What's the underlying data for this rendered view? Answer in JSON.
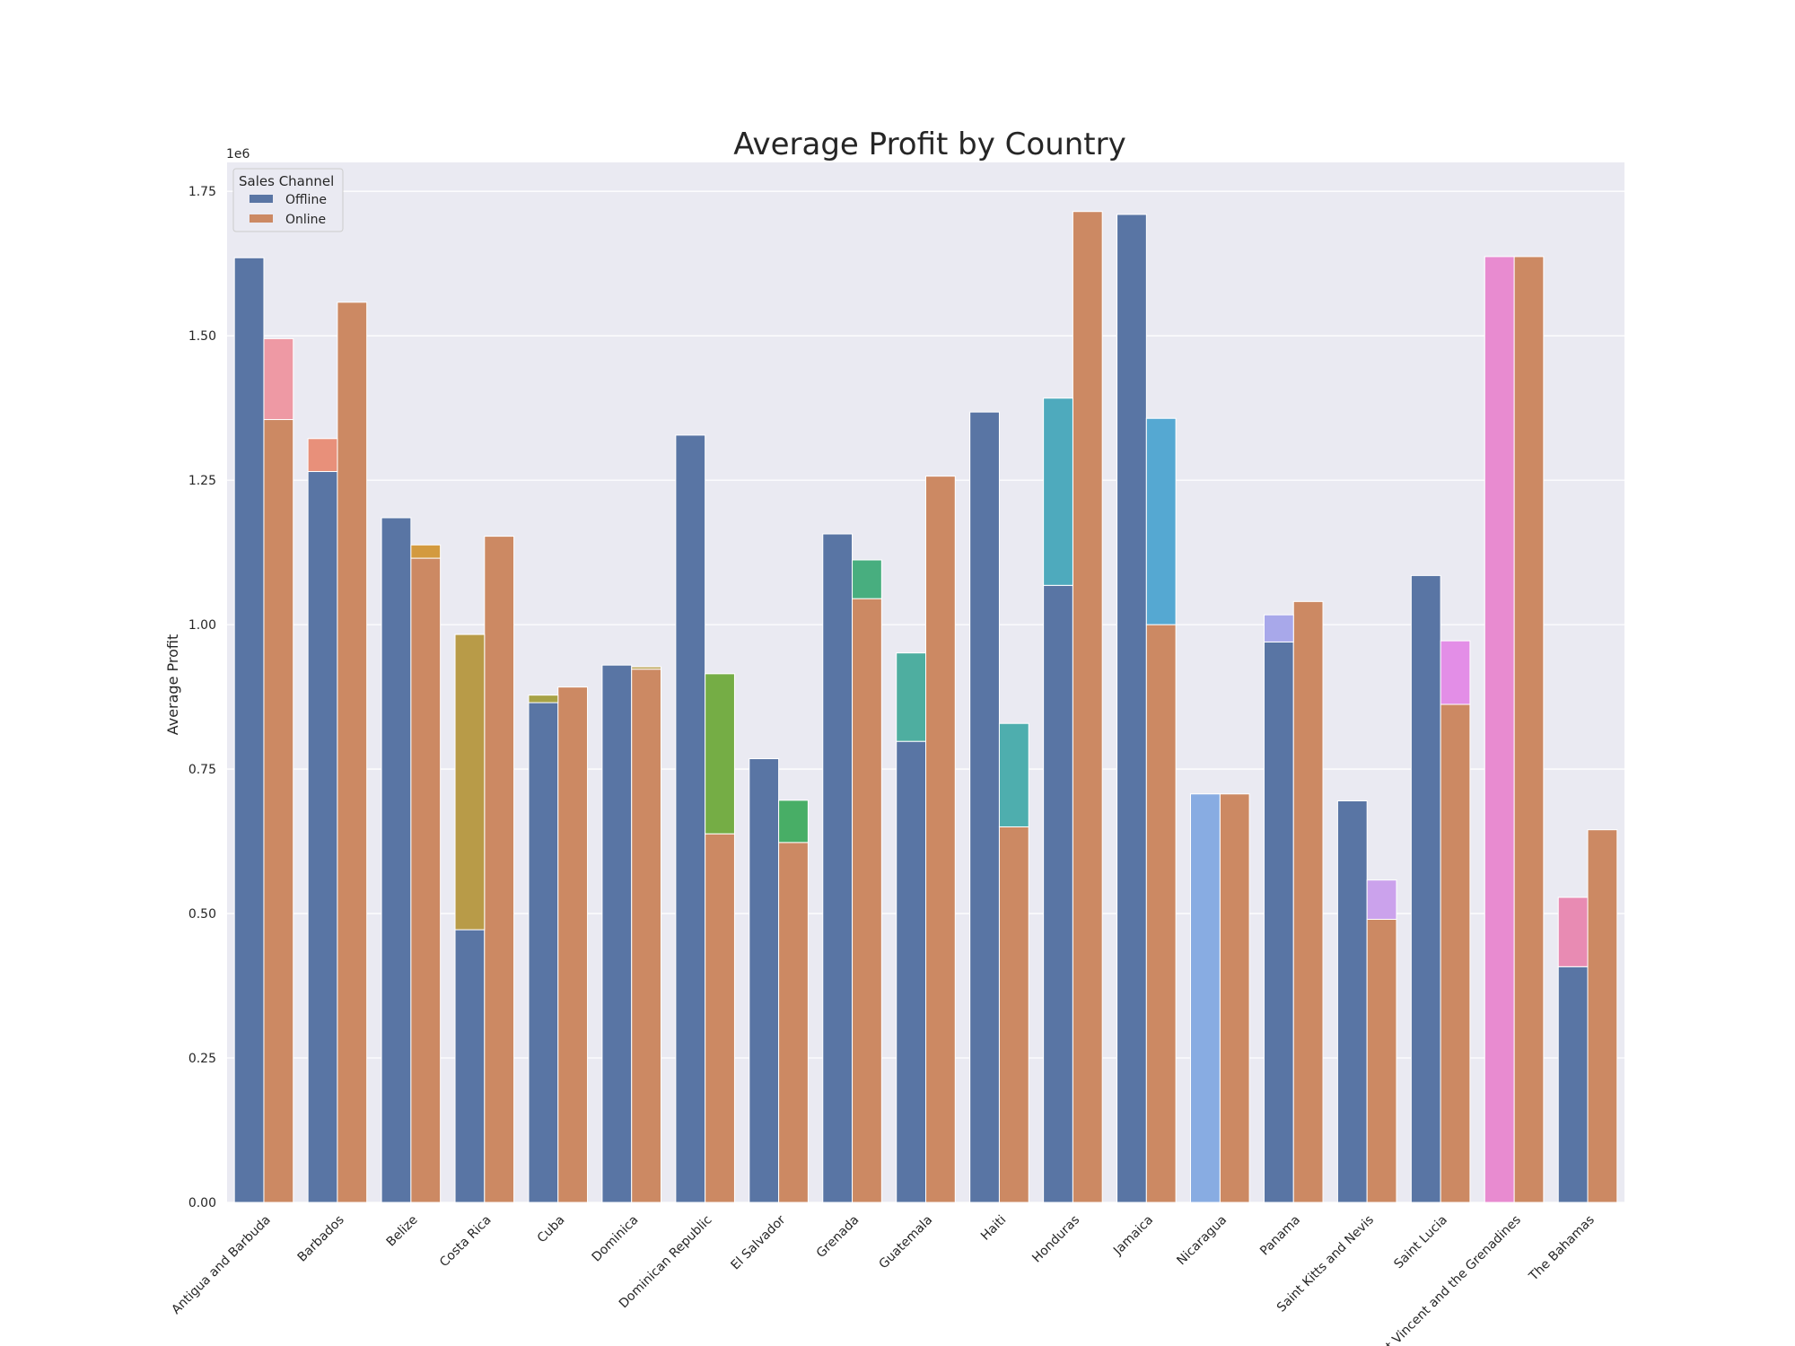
{
  "chart_data": {
    "type": "bar",
    "title": "Average Profit by Country",
    "xlabel": "",
    "ylabel": "Average Profit",
    "y_multiplier_label": "1e6",
    "ylim": [
      0,
      1.8
    ],
    "yticks": [
      "0.00",
      "0.25",
      "0.50",
      "0.75",
      "1.00",
      "1.25",
      "1.50",
      "1.75"
    ],
    "grid": true,
    "legend": {
      "title": "Sales Channel",
      "placement": "top-left"
    },
    "categories": [
      "Antigua and Barbuda",
      "Barbados",
      "Belize",
      "Costa Rica",
      "Cuba",
      "Dominica",
      "Dominican Republic",
      "El Salvador",
      "Grenada",
      "Guatemala",
      "Haiti",
      "Honduras",
      "Jamaica",
      "Nicaragua",
      "Panama",
      "Saint Kitts and Nevis",
      "Saint Lucia",
      "Saint Vincent and the Grenadines",
      "The Bahamas"
    ],
    "series": [
      {
        "name": "Offline",
        "color": "#5975a4",
        "values": [
          1.635,
          1.265,
          1.185,
          0.472,
          0.865,
          0.93,
          1.328,
          0.768,
          1.157,
          0.798,
          1.368,
          1.068,
          1.71,
          0.707,
          0.97,
          0.695,
          1.085,
          1.637,
          0.408
        ]
      },
      {
        "name": "Online",
        "color": "#cc8963",
        "values": [
          1.355,
          1.558,
          1.115,
          1.153,
          0.892,
          0.923,
          0.638,
          0.623,
          1.045,
          1.257,
          0.65,
          1.715,
          1.0,
          0.707,
          1.04,
          0.49,
          0.862,
          1.637,
          0.645
        ]
      }
    ],
    "overlay": {
      "values": [
        1.495,
        1.322,
        1.138,
        0.983,
        0.878,
        0.927,
        0.915,
        0.696,
        1.112,
        0.951,
        0.829,
        1.392,
        1.357,
        0.707,
        1.017,
        0.558,
        0.972,
        1.637,
        0.528
      ],
      "colors": [
        "#ee99a4",
        "#e8907a",
        "#d39a3f",
        "#b89b48",
        "#a7a246",
        "#b8a150",
        "#75ad45",
        "#48ae66",
        "#48ae7f",
        "#4eaea0",
        "#4eaeae",
        "#4eaabd",
        "#55a8d2",
        "#88ace2",
        "#a8a8ea",
        "#cba2ec",
        "#e38ee7",
        "#e88bd0",
        "#e88bb3"
      ]
    }
  }
}
